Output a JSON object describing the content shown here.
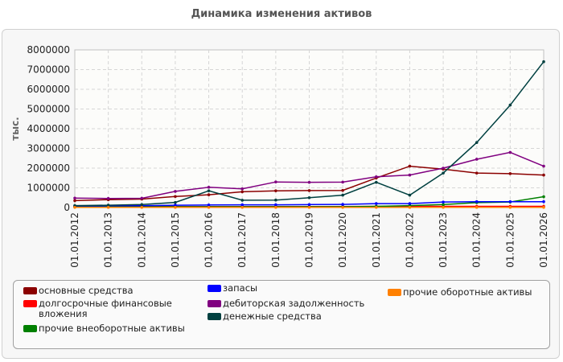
{
  "title": "Динамика изменения активов",
  "chart_data": {
    "type": "line",
    "title": "Динамика изменения активов",
    "ylabel": "тыс.",
    "xlabel": "",
    "ylim": [
      0,
      8000000
    ],
    "yticks": [
      "0",
      "1000000",
      "2000000",
      "3000000",
      "4000000",
      "5000000",
      "6000000",
      "7000000",
      "8000000"
    ],
    "grid": true,
    "legend_position": "bottom",
    "categories": [
      "01.01.2012",
      "01.01.2013",
      "01.01.2014",
      "01.01.2015",
      "01.01.2016",
      "01.01.2017",
      "01.01.2018",
      "01.01.2019",
      "01.01.2020",
      "01.01.2021",
      "01.01.2022",
      "01.01.2023",
      "01.01.2024",
      "01.01.2025",
      "01.01.2026"
    ],
    "series": [
      {
        "name": "основные средства",
        "color": "#8b0000",
        "values": [
          350000,
          400000,
          430000,
          560000,
          650000,
          800000,
          850000,
          860000,
          870000,
          1500000,
          2100000,
          1950000,
          1750000,
          1720000,
          1650000
        ]
      },
      {
        "name": "долгосрочные финансовые вложения",
        "color": "#ff0000",
        "values": [
          50000,
          50000,
          50000,
          50000,
          50000,
          50000,
          50000,
          50000,
          50000,
          60000,
          60000,
          60000,
          60000,
          60000,
          60000
        ]
      },
      {
        "name": "прочие внеоборотные активы",
        "color": "#008000",
        "values": [
          30000,
          40000,
          40000,
          40000,
          40000,
          40000,
          40000,
          40000,
          40000,
          60000,
          100000,
          150000,
          250000,
          280000,
          550000
        ]
      },
      {
        "name": "запасы",
        "color": "#0000ff",
        "values": [
          80000,
          90000,
          90000,
          120000,
          130000,
          140000,
          140000,
          150000,
          160000,
          200000,
          200000,
          280000,
          300000,
          300000,
          300000
        ]
      },
      {
        "name": "дебиторская задолженность",
        "color": "#800080",
        "values": [
          480000,
          460000,
          470000,
          820000,
          1030000,
          950000,
          1300000,
          1280000,
          1290000,
          1560000,
          1650000,
          2000000,
          2450000,
          2800000,
          2100000
        ]
      },
      {
        "name": "денежные средства",
        "color": "#004040",
        "values": [
          100000,
          120000,
          150000,
          260000,
          850000,
          370000,
          380000,
          500000,
          630000,
          1280000,
          630000,
          1750000,
          3300000,
          5200000,
          7400000
        ]
      },
      {
        "name": "прочие оборотные активы",
        "color": "#ff8000",
        "values": [
          10000,
          10000,
          10000,
          10000,
          10000,
          10000,
          10000,
          10000,
          10000,
          10000,
          10000,
          10000,
          10000,
          10000,
          10000
        ]
      }
    ]
  }
}
